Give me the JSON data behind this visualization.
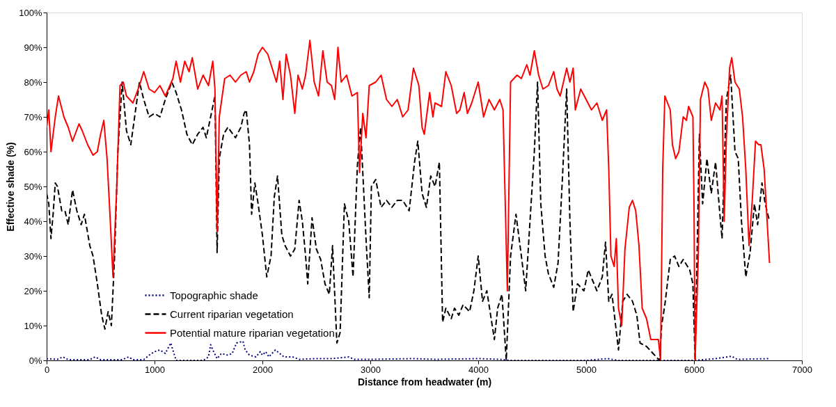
{
  "chart_data": {
    "type": "line",
    "xlabel": "Distance from headwater (m)",
    "ylabel": "Effective shade (%)",
    "xlim": [
      0,
      7000
    ],
    "xticks": [
      0,
      1000,
      2000,
      3000,
      4000,
      5000,
      6000,
      7000
    ],
    "ylim": [
      0,
      100
    ],
    "yticks": [
      {
        "value": 0,
        "label": "0%"
      },
      {
        "value": 10,
        "label": "10%"
      },
      {
        "value": 20,
        "label": "20%"
      },
      {
        "value": 30,
        "label": "30%"
      },
      {
        "value": 40,
        "label": "40%"
      },
      {
        "value": 50,
        "label": "50%"
      },
      {
        "value": 60,
        "label": "60%"
      },
      {
        "value": 70,
        "label": "70%"
      },
      {
        "value": 80,
        "label": "80%"
      },
      {
        "value": 90,
        "label": "90%"
      },
      {
        "value": 100,
        "label": "100%"
      }
    ],
    "grid": false,
    "legend": "bottom left",
    "marker": "none",
    "series": [
      {
        "name": "Topographic shade",
        "color": "#000080",
        "line_style": "dotted",
        "x": [
          0,
          100,
          150,
          200,
          400,
          450,
          500,
          700,
          760,
          800,
          900,
          950,
          1000,
          1050,
          1100,
          1150,
          1180,
          1200,
          1450,
          1500,
          1520,
          1540,
          1580,
          1620,
          1680,
          1720,
          1760,
          1820,
          1840,
          1880,
          1940,
          1980,
          2000,
          2030,
          2060,
          2120,
          2160,
          2200,
          2280,
          2340,
          2500,
          2650,
          2800,
          2850,
          3000,
          3400,
          3600,
          4000,
          4200,
          4300,
          5000,
          5200,
          5300,
          6000,
          6200,
          6350,
          6400,
          6700
        ],
        "values": [
          0.5,
          0.3,
          1,
          0.2,
          0.2,
          1,
          0.2,
          0.2,
          1,
          0.2,
          0.2,
          1.5,
          2.5,
          3,
          2,
          5,
          2,
          0,
          0,
          1,
          4.5,
          3,
          0.5,
          2,
          1.5,
          2,
          5,
          5.5,
          3,
          1.5,
          1,
          2.5,
          1.5,
          2.5,
          1,
          3,
          2,
          1,
          1,
          0.3,
          0.5,
          0.5,
          1,
          0.3,
          0.3,
          0.5,
          0.3,
          0.5,
          0.3,
          0,
          0,
          0.5,
          0,
          0,
          0.5,
          1.2,
          0.3,
          0.5
        ]
      },
      {
        "name": "Current riparian vegetation",
        "color": "#000000",
        "line_style": "dashed",
        "x": [
          0,
          20,
          40,
          60,
          80,
          100,
          140,
          170,
          200,
          240,
          280,
          320,
          350,
          400,
          430,
          470,
          510,
          540,
          570,
          600,
          630,
          660,
          700,
          740,
          780,
          820,
          860,
          900,
          950,
          1000,
          1050,
          1100,
          1160,
          1200,
          1250,
          1300,
          1350,
          1400,
          1450,
          1480,
          1520,
          1560,
          1580,
          1600,
          1640,
          1680,
          1750,
          1800,
          1830,
          1850,
          1880,
          1900,
          1930,
          1960,
          2000,
          2040,
          2080,
          2110,
          2140,
          2180,
          2210,
          2260,
          2300,
          2340,
          2370,
          2400,
          2420,
          2460,
          2500,
          2540,
          2580,
          2620,
          2650,
          2690,
          2720,
          2760,
          2800,
          2840,
          2880,
          2910,
          2960,
          2990,
          3010,
          3050,
          3100,
          3150,
          3200,
          3250,
          3300,
          3360,
          3410,
          3440,
          3480,
          3520,
          3560,
          3600,
          3640,
          3670,
          3700,
          3750,
          3780,
          3820,
          3860,
          3920,
          3960,
          4000,
          4040,
          4080,
          4150,
          4180,
          4220,
          4260,
          4300,
          4350,
          4400,
          4440,
          4480,
          4520,
          4550,
          4580,
          4620,
          4650,
          4700,
          4740,
          4780,
          4820,
          4850,
          4880,
          4920,
          4980,
          5020,
          5060,
          5100,
          5150,
          5180,
          5210,
          5240,
          5270,
          5300,
          5340,
          5380,
          5430,
          5470,
          5500,
          5560,
          5620,
          5680,
          5700,
          5730,
          5780,
          5820,
          5860,
          5900,
          5960,
          5990,
          6010,
          6050,
          6080,
          6120,
          6160,
          6200,
          6240,
          6260,
          6300,
          6340,
          6380,
          6410,
          6440,
          6480,
          6520,
          6560,
          6590,
          6630,
          6660,
          6700
        ],
        "values": [
          48,
          45,
          35,
          42,
          51,
          50,
          43,
          43,
          39,
          49,
          43,
          39,
          42,
          33,
          30,
          22,
          13,
          9,
          14,
          10,
          30,
          60,
          80,
          66,
          62,
          71,
          80,
          75,
          70,
          71,
          70,
          75,
          80,
          77,
          72,
          65,
          62,
          65,
          67,
          64,
          70,
          76,
          31,
          58,
          65,
          67,
          64,
          67,
          71,
          72,
          62,
          42,
          51,
          45,
          36,
          24,
          30,
          47,
          53,
          36,
          33,
          30,
          32,
          46,
          40,
          30,
          22,
          41,
          32,
          29,
          22,
          19,
          33,
          5,
          8,
          45,
          40,
          24,
          56,
          67,
          35,
          18,
          50,
          52,
          44,
          46,
          44,
          46,
          46,
          43,
          57,
          63,
          48,
          44,
          53,
          50,
          57,
          11,
          15,
          12,
          15,
          13,
          16,
          14,
          20,
          30,
          17,
          20,
          6,
          15,
          19,
          0,
          30,
          42,
          30,
          20,
          40,
          60,
          80,
          45,
          30,
          25,
          21,
          28,
          52,
          78,
          40,
          14,
          22,
          20,
          26,
          23,
          20,
          24,
          34,
          17,
          19,
          11,
          3,
          17,
          19,
          17,
          13,
          5,
          4,
          2,
          0,
          10,
          16,
          29,
          30,
          27,
          29,
          26,
          22,
          0,
          65,
          45,
          58,
          48,
          57,
          42,
          35,
          75,
          82,
          60,
          58,
          40,
          24,
          31,
          45,
          39,
          51,
          45,
          40
        ]
      },
      {
        "name": "Potential mature riparian vegetation",
        "color": "#ff0000",
        "line_style": "solid",
        "x": [
          0,
          20,
          40,
          80,
          110,
          160,
          200,
          240,
          300,
          330,
          380,
          430,
          470,
          500,
          530,
          560,
          590,
          615,
          650,
          680,
          710,
          740,
          800,
          860,
          900,
          950,
          1000,
          1050,
          1100,
          1170,
          1200,
          1240,
          1280,
          1320,
          1350,
          1400,
          1450,
          1500,
          1540,
          1560,
          1580,
          1600,
          1650,
          1700,
          1750,
          1800,
          1850,
          1880,
          1920,
          1960,
          2000,
          2050,
          2100,
          2130,
          2160,
          2190,
          2220,
          2260,
          2300,
          2330,
          2370,
          2400,
          2440,
          2480,
          2520,
          2560,
          2600,
          2640,
          2670,
          2700,
          2730,
          2780,
          2830,
          2880,
          2900,
          2930,
          2960,
          2990,
          3050,
          3100,
          3150,
          3200,
          3250,
          3300,
          3350,
          3400,
          3450,
          3480,
          3500,
          3550,
          3580,
          3600,
          3660,
          3700,
          3750,
          3800,
          3830,
          3870,
          3900,
          3940,
          4000,
          4050,
          4100,
          4150,
          4200,
          4230,
          4270,
          4290,
          4300,
          4360,
          4400,
          4450,
          4480,
          4520,
          4560,
          4600,
          4650,
          4700,
          4730,
          4760,
          4820,
          4850,
          4880,
          4900,
          4950,
          5000,
          5050,
          5100,
          5150,
          5190,
          5210,
          5230,
          5260,
          5280,
          5300,
          5330,
          5360,
          5400,
          5430,
          5460,
          5490,
          5520,
          5560,
          5600,
          5650,
          5670,
          5690,
          5710,
          5730,
          5780,
          5800,
          5830,
          5860,
          5900,
          5930,
          5950,
          5990,
          6000,
          6010,
          6040,
          6060,
          6100,
          6130,
          6160,
          6200,
          6240,
          6260,
          6280,
          6300,
          6330,
          6350,
          6380,
          6420,
          6450,
          6480,
          6510,
          6540,
          6570,
          6600,
          6620,
          6650,
          6700
        ],
        "values": [
          67,
          72,
          60,
          70,
          76,
          70,
          67,
          63,
          68,
          66,
          62,
          59,
          60,
          65,
          69,
          58,
          40,
          24,
          50,
          79,
          80,
          76,
          74,
          79,
          83,
          78,
          77,
          79,
          76,
          81,
          86,
          80,
          86,
          83,
          87,
          78,
          82,
          79,
          86,
          78,
          37,
          70,
          81,
          82,
          80,
          82,
          83,
          80,
          83,
          88,
          90,
          88,
          83,
          80,
          86,
          75,
          88,
          82,
          71,
          82,
          78,
          82,
          92,
          80,
          76,
          89,
          80,
          79,
          75,
          90,
          80,
          82,
          76,
          77,
          54,
          71,
          64,
          79,
          80,
          82,
          75,
          73,
          75,
          70,
          72,
          84,
          79,
          67,
          65,
          77,
          70,
          74,
          73,
          83,
          79,
          71,
          72,
          77,
          71,
          74,
          80,
          70,
          75,
          72,
          75,
          72,
          20,
          60,
          80,
          82,
          81,
          85,
          82,
          89,
          82,
          78,
          79,
          83,
          78,
          76,
          84,
          80,
          84,
          72,
          78,
          75,
          72,
          74,
          69,
          72,
          55,
          30,
          27,
          35,
          15,
          10,
          32,
          44,
          46,
          43,
          33,
          15,
          12,
          6,
          6,
          6,
          0,
          55,
          76,
          72,
          62,
          58,
          60,
          70,
          69,
          73,
          70,
          45,
          0,
          30,
          75,
          80,
          78,
          69,
          74,
          72,
          76,
          40,
          64,
          84,
          87,
          80,
          78,
          70,
          55,
          33,
          46,
          63,
          62,
          62,
          55,
          28
        ]
      }
    ]
  }
}
